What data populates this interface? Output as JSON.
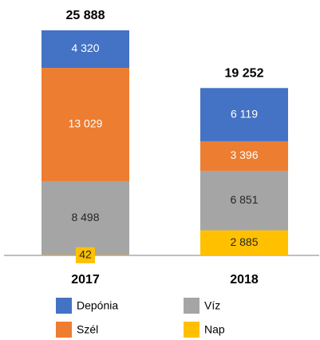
{
  "chart_data": {
    "type": "stacked-bar",
    "categories": [
      "2017",
      "2018"
    ],
    "series": [
      {
        "name": "Depónia",
        "color": "#4472c4",
        "label_color": "#ffffff",
        "values": [
          4320,
          6119
        ],
        "value_labels": [
          "4 320",
          "6 119"
        ]
      },
      {
        "name": "Szél",
        "color": "#ed7d31",
        "label_color": "#ffffff",
        "values": [
          13029,
          3396
        ],
        "value_labels": [
          "13 029",
          "3 396"
        ]
      },
      {
        "name": "Víz",
        "color": "#a5a5a5",
        "label_color": "#262626",
        "values": [
          8498,
          6851
        ],
        "value_labels": [
          "8 498",
          "6 851"
        ]
      },
      {
        "name": "Nap",
        "color": "#ffc000",
        "label_color": "#262626",
        "values": [
          42,
          2885
        ],
        "value_labels": [
          "42",
          "2 885"
        ]
      }
    ],
    "totals": {
      "values": [
        25888,
        19252
      ],
      "value_labels": [
        "25 888",
        "19 252"
      ]
    }
  }
}
